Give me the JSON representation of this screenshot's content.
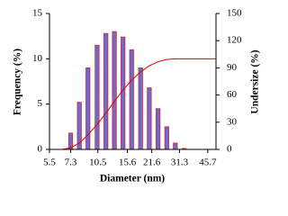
{
  "chart_data": {
    "type": "bar",
    "xlabel": "Diameter  (nm)",
    "ylabel": "Frequency  (%)",
    "y2label": "Undersize  (%)",
    "xscale": "log",
    "x": [
      7.3,
      8.2,
      9.2,
      10.4,
      11.7,
      13.1,
      14.7,
      16.5,
      18.6,
      20.9,
      23.5,
      26.4,
      29.6,
      33.3
    ],
    "values": [
      1.8,
      5.2,
      9.0,
      11.5,
      12.8,
      13.0,
      12.4,
      11.0,
      9.0,
      6.8,
      4.5,
      2.5,
      0.7,
      0.1
    ],
    "color": "#6b6bd0",
    "edgecolor": "#e02020",
    "cumulative": {
      "type": "line",
      "axis": "y2",
      "color": "#e00000",
      "x": [
        5.5,
        6.5,
        7.3,
        8.2,
        9.2,
        10.4,
        11.7,
        13.1,
        14.7,
        16.5,
        18.6,
        20.9,
        23.5,
        26.4,
        29.6,
        51
      ],
      "values": [
        0,
        0,
        1.8,
        7,
        16,
        27.5,
        40,
        53,
        65.5,
        76.5,
        85.5,
        92.3,
        96.8,
        99.3,
        100,
        100
      ]
    },
    "xlim": [
      5.5,
      51
    ],
    "xticks": [
      5.5,
      7.3,
      10.5,
      15.6,
      21.6,
      31.3,
      45.7
    ],
    "ylim": [
      0,
      15
    ],
    "yticks": [
      0,
      5,
      10,
      15
    ],
    "y2lim": [
      0,
      150
    ],
    "y2ticks": [
      0,
      30,
      60,
      90,
      120,
      150
    ]
  }
}
